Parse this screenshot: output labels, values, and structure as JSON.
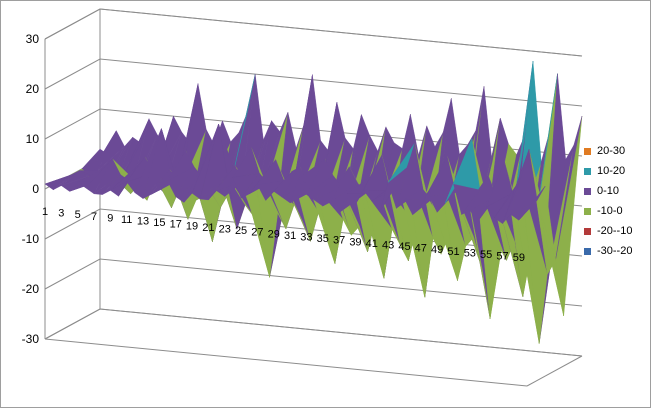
{
  "chart_data": {
    "type": "surface-3d",
    "title": "",
    "zlim": [
      -30,
      30
    ],
    "z_ticks": [
      "30",
      "20",
      "10",
      "0",
      "-10",
      "-20",
      "-30"
    ],
    "x_tick_labels": [
      "1",
      "3",
      "5",
      "7",
      "9",
      "11",
      "13",
      "15",
      "17",
      "19",
      "21",
      "23",
      "25",
      "27",
      "29",
      "31",
      "33",
      "35",
      "37",
      "39",
      "41",
      "43",
      "45",
      "47",
      "49",
      "51",
      "53",
      "55",
      "57",
      "59"
    ],
    "legend": [
      {
        "label": "20-30",
        "color": "#e07b22"
      },
      {
        "label": "10-20",
        "color": "#2e9aa8"
      },
      {
        "label": "0-10",
        "color": "#6b4a96"
      },
      {
        "label": "-10-0",
        "color": "#8db04a"
      },
      {
        "label": "-20--10",
        "color": "#b33a3a"
      },
      {
        "label": "-30--20",
        "color": "#3a6aaa"
      }
    ],
    "grid": true,
    "legend_position": "right",
    "series": [
      {
        "values": [
          1,
          0,
          1,
          0,
          2,
          1,
          0,
          0,
          1,
          0,
          3,
          1,
          0,
          1,
          2,
          4,
          1,
          0,
          2,
          1,
          1,
          3,
          2,
          6,
          2,
          3,
          5,
          2,
          4,
          3,
          2,
          7,
          4,
          3,
          2,
          3,
          1,
          5,
          3,
          6,
          4,
          2,
          8,
          3,
          5,
          2,
          4,
          6,
          3,
          5,
          9,
          3,
          4,
          2,
          5,
          3,
          2,
          4,
          3,
          5
        ]
      },
      {
        "values": [
          0,
          1,
          2,
          1,
          0,
          3,
          5,
          2,
          1,
          4,
          6,
          3,
          12,
          4,
          2,
          8,
          5,
          3,
          9,
          14,
          4,
          6,
          3,
          10,
          5,
          3,
          8,
          4,
          6,
          7,
          4,
          3,
          9,
          6,
          4,
          8,
          5,
          3,
          7,
          11,
          4,
          6,
          9,
          14,
          5,
          3,
          8,
          12,
          5,
          9,
          16,
          6,
          9,
          5,
          12,
          6,
          9,
          15,
          5,
          8
        ]
      },
      {
        "values": [
          0,
          -1,
          0,
          -2,
          -3,
          -1,
          -4,
          -2,
          -5,
          -1,
          -3,
          -6,
          -2,
          -8,
          -4,
          -3,
          -12,
          -5,
          -2,
          -9,
          -4,
          -6,
          -3,
          -18,
          -5,
          -8,
          -3,
          -6,
          -10,
          -4,
          -7,
          -14,
          -5,
          -8,
          -6,
          -11,
          -4,
          -16,
          -6,
          -9,
          -12,
          -5,
          -19,
          -7,
          -10,
          -6,
          -15,
          -8,
          -6,
          -12,
          -22,
          -7,
          -10,
          -6,
          -17,
          -8,
          -26,
          -12,
          -9,
          -20
        ]
      },
      {
        "values": [
          2,
          1,
          6,
          3,
          5,
          4,
          9,
          6,
          4,
          10,
          7,
          5,
          17,
          8,
          5,
          10,
          6,
          8,
          12,
          20,
          7,
          11,
          9,
          13,
          6,
          11,
          21,
          8,
          6,
          16,
          9,
          7,
          14,
          10,
          7,
          12,
          9,
          8,
          15,
          7,
          13,
          9,
          12,
          19,
          8,
          10,
          13,
          22,
          7,
          16,
          11,
          9,
          13,
          28,
          8,
          14,
          26,
          9,
          12,
          18
        ]
      }
    ]
  }
}
